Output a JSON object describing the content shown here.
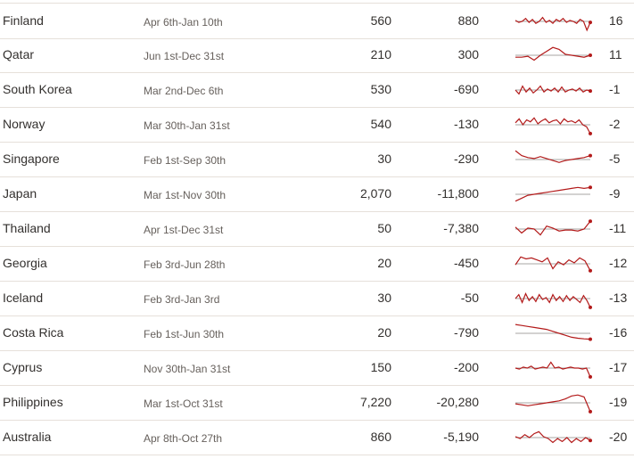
{
  "rows": [
    {
      "country": "Finland",
      "period": "Apr 6th-Jan 10th",
      "value1": "560",
      "value2": "880",
      "rank": "16",
      "trend": [
        0.45,
        0.55,
        0.5,
        0.35,
        0.55,
        0.4,
        0.6,
        0.5,
        0.3,
        0.55,
        0.45,
        0.6,
        0.4,
        0.5,
        0.35,
        0.55,
        0.45,
        0.5,
        0.6,
        0.4,
        0.5,
        0.95,
        0.55
      ]
    },
    {
      "country": "Qatar",
      "period": "Jun 1st-Dec 31st",
      "value1": "210",
      "value2": "300",
      "rank": "11",
      "trend": [
        0.6,
        0.6,
        0.55,
        0.75,
        0.5,
        0.3,
        0.1,
        0.2,
        0.45,
        0.5,
        0.55,
        0.6,
        0.5
      ]
    },
    {
      "country": "South Korea",
      "period": "Mar 2nd-Dec 6th",
      "value1": "530",
      "value2": "-690",
      "rank": "-1",
      "trend": [
        0.5,
        0.7,
        0.3,
        0.6,
        0.4,
        0.65,
        0.5,
        0.3,
        0.6,
        0.45,
        0.55,
        0.4,
        0.6,
        0.35,
        0.6,
        0.5,
        0.45,
        0.55,
        0.4,
        0.6,
        0.5,
        0.55
      ]
    },
    {
      "country": "Norway",
      "period": "Mar 30th-Jan 31st",
      "value1": "540",
      "value2": "-130",
      "rank": "-2",
      "trend": [
        0.4,
        0.2,
        0.5,
        0.25,
        0.35,
        0.15,
        0.45,
        0.3,
        0.2,
        0.4,
        0.3,
        0.25,
        0.45,
        0.2,
        0.35,
        0.3,
        0.4,
        0.25,
        0.5,
        0.6,
        0.95
      ]
    },
    {
      "country": "Singapore",
      "period": "Feb 1st-Sep 30th",
      "value1": "30",
      "value2": "-290",
      "rank": "-5",
      "trend": [
        0.05,
        0.3,
        0.4,
        0.45,
        0.35,
        0.45,
        0.55,
        0.65,
        0.55,
        0.5,
        0.45,
        0.4,
        0.3
      ]
    },
    {
      "country": "Japan",
      "period": "Mar 1st-Nov 30th",
      "value1": "2,070",
      "value2": "-11,800",
      "rank": "-9",
      "trend": [
        0.85,
        0.7,
        0.55,
        0.5,
        0.45,
        0.4,
        0.35,
        0.3,
        0.25,
        0.2,
        0.15,
        0.2,
        0.15
      ]
    },
    {
      "country": "Thailand",
      "period": "Apr 1st-Dec 31st",
      "value1": "50",
      "value2": "-7,380",
      "rank": "-11",
      "trend": [
        0.4,
        0.7,
        0.45,
        0.5,
        0.8,
        0.35,
        0.45,
        0.6,
        0.55,
        0.55,
        0.6,
        0.5,
        0.1
      ]
    },
    {
      "country": "Georgia",
      "period": "Feb 3rd-Jun 28th",
      "value1": "20",
      "value2": "-450",
      "rank": "-12",
      "trend": [
        0.55,
        0.15,
        0.25,
        0.2,
        0.3,
        0.4,
        0.2,
        0.75,
        0.4,
        0.55,
        0.3,
        0.45,
        0.2,
        0.35,
        0.85
      ]
    },
    {
      "country": "Iceland",
      "period": "Feb 3rd-Jan 3rd",
      "value1": "30",
      "value2": "-50",
      "rank": "-13",
      "trend": [
        0.5,
        0.3,
        0.7,
        0.25,
        0.6,
        0.4,
        0.65,
        0.3,
        0.55,
        0.45,
        0.7,
        0.3,
        0.6,
        0.4,
        0.65,
        0.35,
        0.6,
        0.4,
        0.55,
        0.7,
        0.35,
        0.6,
        0.95
      ]
    },
    {
      "country": "Costa Rica",
      "period": "Feb 1st-Jun 30th",
      "value1": "20",
      "value2": "-790",
      "rank": "-16",
      "trend": [
        0.05,
        0.1,
        0.15,
        0.2,
        0.25,
        0.3,
        0.4,
        0.5,
        0.6,
        0.7,
        0.75,
        0.78,
        0.8
      ]
    },
    {
      "country": "Cyprus",
      "period": "Nov 30th-Jan 31st",
      "value1": "150",
      "value2": "-200",
      "rank": "-17",
      "trend": [
        0.5,
        0.55,
        0.45,
        0.5,
        0.4,
        0.55,
        0.5,
        0.45,
        0.5,
        0.2,
        0.5,
        0.45,
        0.55,
        0.5,
        0.45,
        0.5,
        0.5,
        0.55,
        0.5,
        0.95
      ]
    },
    {
      "country": "Philippines",
      "period": "Mar 1st-Oct 31st",
      "value1": "7,220",
      "value2": "-20,280",
      "rank": "-19",
      "trend": [
        0.55,
        0.6,
        0.65,
        0.6,
        0.55,
        0.5,
        0.45,
        0.4,
        0.3,
        0.15,
        0.1,
        0.2,
        0.95
      ]
    },
    {
      "country": "Australia",
      "period": "Apr 8th-Oct 27th",
      "value1": "860",
      "value2": "-5,190",
      "rank": "-20",
      "trend": [
        0.45,
        0.55,
        0.35,
        0.5,
        0.3,
        0.2,
        0.45,
        0.55,
        0.75,
        0.55,
        0.7,
        0.5,
        0.75,
        0.55,
        0.7,
        0.5,
        0.65
      ]
    }
  ],
  "colors": {
    "spark_line": "#b31a1a",
    "baseline": "#8a8784",
    "text": "#33302e",
    "muted": "#66605c",
    "rule": "#e6e0da"
  }
}
